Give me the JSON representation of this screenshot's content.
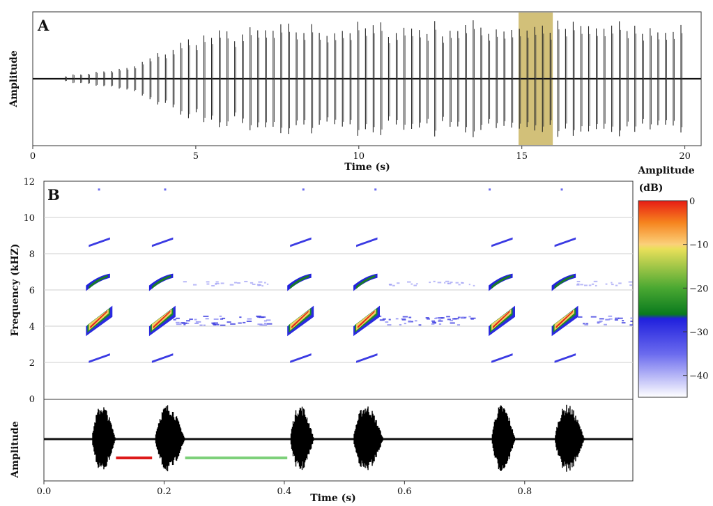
{
  "chart_data": [
    {
      "panel_label": "A",
      "type": "line",
      "xlabel": "Time (s)",
      "ylabel": "Amplitude",
      "xlim": [
        0,
        20.5
      ],
      "xticks": [
        0,
        5,
        10,
        15,
        20
      ],
      "highlight": {
        "x_start": 14.9,
        "x_end": 15.95,
        "color": "#cdb96a"
      },
      "pulse_train": {
        "start_s": 1.0,
        "end_s": 20.1,
        "period_s": 0.236,
        "envelope": [
          [
            0,
            0.02
          ],
          [
            1,
            0.05
          ],
          [
            3,
            0.18
          ],
          [
            4,
            0.45
          ],
          [
            5,
            0.7
          ],
          [
            8,
            0.85
          ],
          [
            15,
            0.9
          ],
          [
            20,
            0.85
          ],
          [
            20.5,
            0.2
          ]
        ]
      }
    },
    {
      "panel_label": "B",
      "type": "heatmap",
      "xlabel": "Time (s)",
      "ylabel": "Frequency (kHZ)",
      "xlim": [
        0,
        0.98
      ],
      "ylim": [
        0,
        12
      ],
      "yticks": [
        0,
        2,
        4,
        6,
        8,
        10,
        12
      ],
      "grid": true,
      "calls": [
        0.07,
        0.175,
        0.405,
        0.515,
        0.74,
        0.845
      ],
      "harmonics_khz": [
        2.2,
        4.3,
        6.4,
        8.6
      ],
      "colorbar": {
        "title_line1": "Amplitude",
        "title_line2": "(dB)",
        "ticks": [
          0,
          -10,
          -20,
          -30,
          -40
        ],
        "range": [
          0,
          -45
        ],
        "colors": [
          {
            "db": 0,
            "color": "#e81c14"
          },
          {
            "db": -5,
            "color": "#f6841e"
          },
          {
            "db": -10,
            "color": "#fbd07a"
          },
          {
            "db": -11,
            "color": "#eae05a"
          },
          {
            "db": -20,
            "color": "#4aa832"
          },
          {
            "db": -26,
            "color": "#0a7a1e"
          },
          {
            "db": -27,
            "color": "#2020dd"
          },
          {
            "db": -35,
            "color": "#6a6aee"
          },
          {
            "db": -45,
            "color": "#ffffff"
          }
        ]
      }
    },
    {
      "type": "line",
      "xlabel": "Time (s)",
      "ylabel": "Amplitude",
      "xlim": [
        0,
        0.98
      ],
      "xticks": [
        0.0,
        0.2,
        0.4,
        0.6,
        0.8
      ],
      "xtick_labels": [
        "0.0",
        "0.2",
        "0.4",
        "0.6",
        "0.8"
      ],
      "bursts": [
        {
          "start": 0.08,
          "end": 0.12
        },
        {
          "start": 0.185,
          "end": 0.235
        },
        {
          "start": 0.41,
          "end": 0.45
        },
        {
          "start": 0.515,
          "end": 0.565
        },
        {
          "start": 0.745,
          "end": 0.785
        },
        {
          "start": 0.85,
          "end": 0.9
        }
      ],
      "markers": [
        {
          "x_start": 0.12,
          "x_end": 0.18,
          "color": "#dd1a1a"
        },
        {
          "x_start": 0.235,
          "x_end": 0.405,
          "color": "#7dd07a"
        }
      ]
    }
  ]
}
